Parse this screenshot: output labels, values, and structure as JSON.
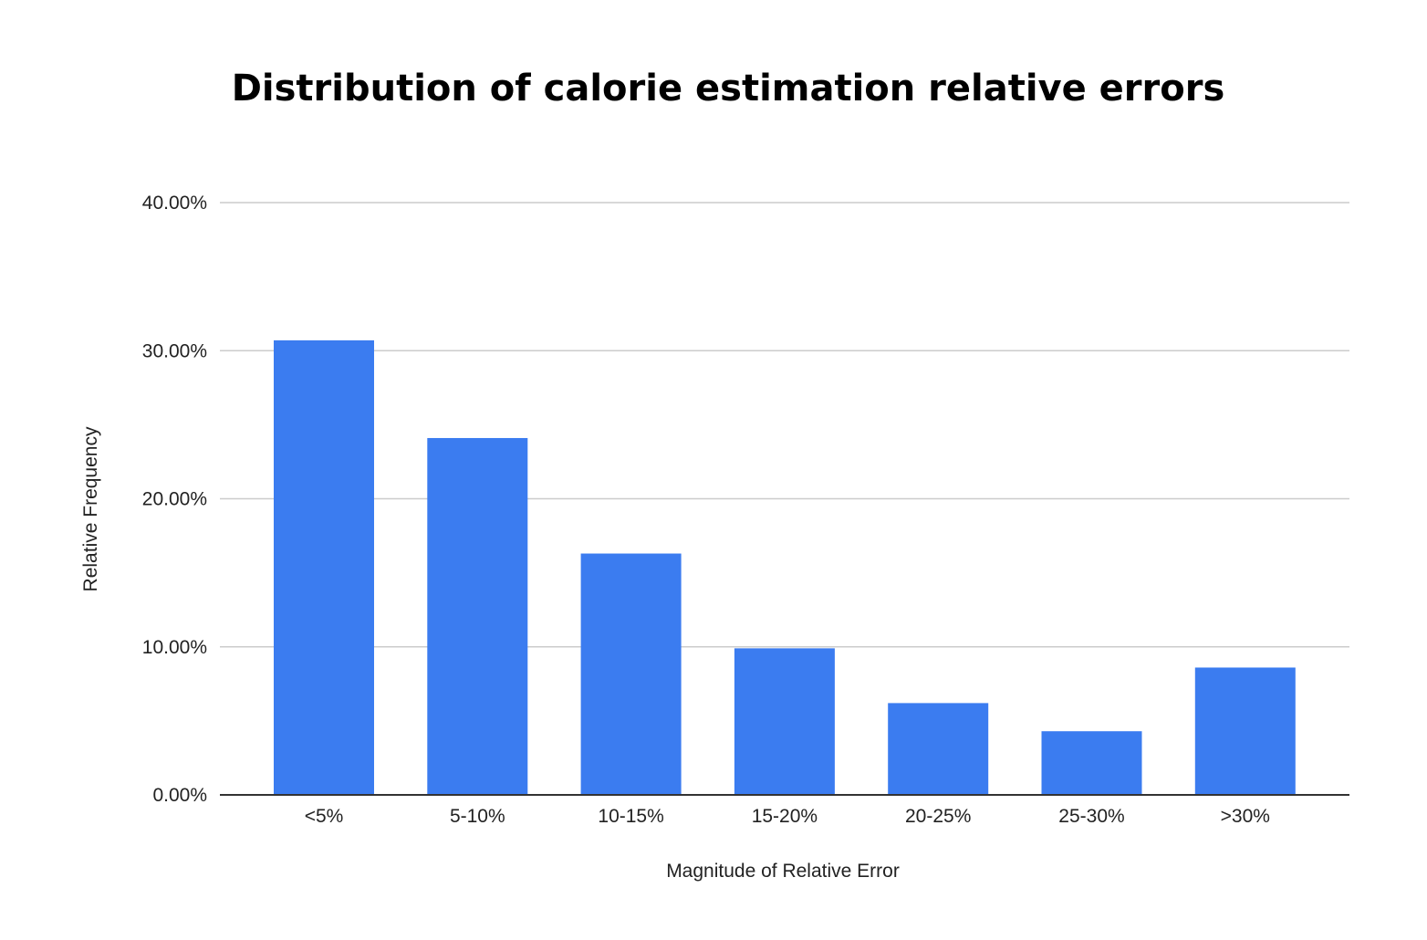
{
  "chart_data": {
    "type": "bar",
    "title": "Distribution of calorie estimation relative errors",
    "xlabel": "Magnitude of Relative Error",
    "ylabel": "Relative Frequency",
    "categories": [
      "<5%",
      "5-10%",
      "10-15%",
      "15-20%",
      "20-25%",
      "25-30%",
      ">30%"
    ],
    "series": [
      {
        "values": [
          30.7,
          24.1,
          16.3,
          9.9,
          6.2,
          4.3,
          8.6
        ],
        "color": "#3b7cf0"
      }
    ],
    "ylim": [
      0,
      40
    ],
    "yticks": [
      "0.00%",
      "10.00%",
      "20.00%",
      "30.00%",
      "40.00%"
    ],
    "grid": true,
    "legend": "none"
  }
}
